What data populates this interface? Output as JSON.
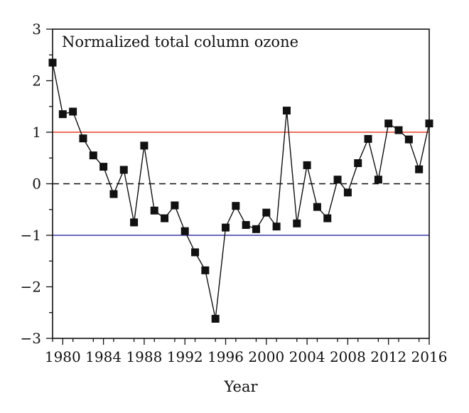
{
  "chart_data": {
    "type": "line",
    "title": "Normalized total column ozone",
    "xlabel": "Year",
    "ylabel": "",
    "xlim": [
      1979,
      2016
    ],
    "ylim": [
      -3,
      3
    ],
    "x_ticks": [
      1980,
      1984,
      1988,
      1992,
      1996,
      2000,
      2004,
      2008,
      2012,
      2016
    ],
    "y_ticks": [
      -3,
      -2,
      -1,
      0,
      1,
      2,
      3
    ],
    "y_tick_labels": [
      "−3",
      "−2",
      "−1",
      "0",
      "1",
      "2",
      "3"
    ],
    "reference_lines": [
      {
        "y": 1,
        "color": "#e8412c",
        "style": "solid"
      },
      {
        "y": 0,
        "color": "#111111",
        "style": "dashed"
      },
      {
        "y": -1,
        "color": "#3a3aa8",
        "style": "solid"
      }
    ],
    "series": [
      {
        "marker": "square",
        "color": "#111111",
        "x": [
          1979,
          1980,
          1981,
          1982,
          1983,
          1984,
          1985,
          1986,
          1987,
          1988,
          1989,
          1990,
          1991,
          1992,
          1993,
          1994,
          1995,
          1996,
          1997,
          1998,
          1999,
          2000,
          2001,
          2002,
          2003,
          2004,
          2005,
          2006,
          2007,
          2008,
          2009,
          2010,
          2011,
          2012,
          2013,
          2014,
          2015,
          2016
        ],
        "y": [
          2.35,
          1.35,
          1.4,
          0.88,
          0.55,
          0.33,
          -0.2,
          0.27,
          -0.75,
          0.74,
          -0.52,
          -0.67,
          -0.42,
          -0.92,
          -1.33,
          -1.68,
          -2.62,
          -0.85,
          -0.43,
          -0.8,
          -0.88,
          -0.56,
          -0.83,
          1.42,
          -0.77,
          0.36,
          -0.45,
          -0.67,
          0.08,
          -0.17,
          0.4,
          0.87,
          0.08,
          1.17,
          1.04,
          0.86,
          0.28,
          1.17
        ]
      }
    ],
    "grid": false,
    "legend": "none"
  }
}
